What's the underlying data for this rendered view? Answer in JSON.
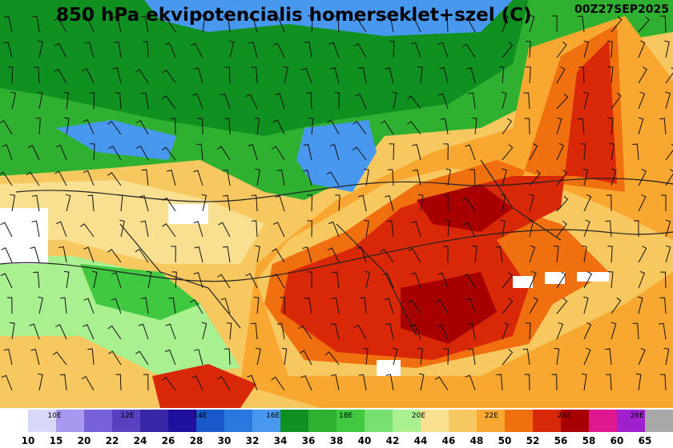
{
  "title": "850 hPa ekvipotencialis homerseklet+szel (C)",
  "date": "00Z27SEP2025",
  "colorbar": {
    "levels": [
      10,
      15,
      20,
      22,
      24,
      26,
      28,
      30,
      32,
      34,
      36,
      38,
      40,
      42,
      44,
      46,
      48,
      50,
      52,
      56,
      58,
      60,
      65
    ],
    "colors": [
      "#d8d8f8",
      "#a898f0",
      "#7860d8",
      "#5840c0",
      "#3828a8",
      "#2010a0",
      "#1858c8",
      "#2878e0",
      "#4898f0",
      "#109020",
      "#30b030",
      "#40c840",
      "#78e070",
      "#a8f090",
      "#f8e090",
      "#f8c860",
      "#f8a830",
      "#f07010",
      "#d82808",
      "#a80000",
      "#e01890",
      "#a020d0",
      "#a8a8a8"
    ],
    "longitudes": [
      "10E",
      "12E",
      "14E",
      "16E",
      "18E",
      "20E",
      "22E",
      "24E",
      "26E"
    ]
  }
}
